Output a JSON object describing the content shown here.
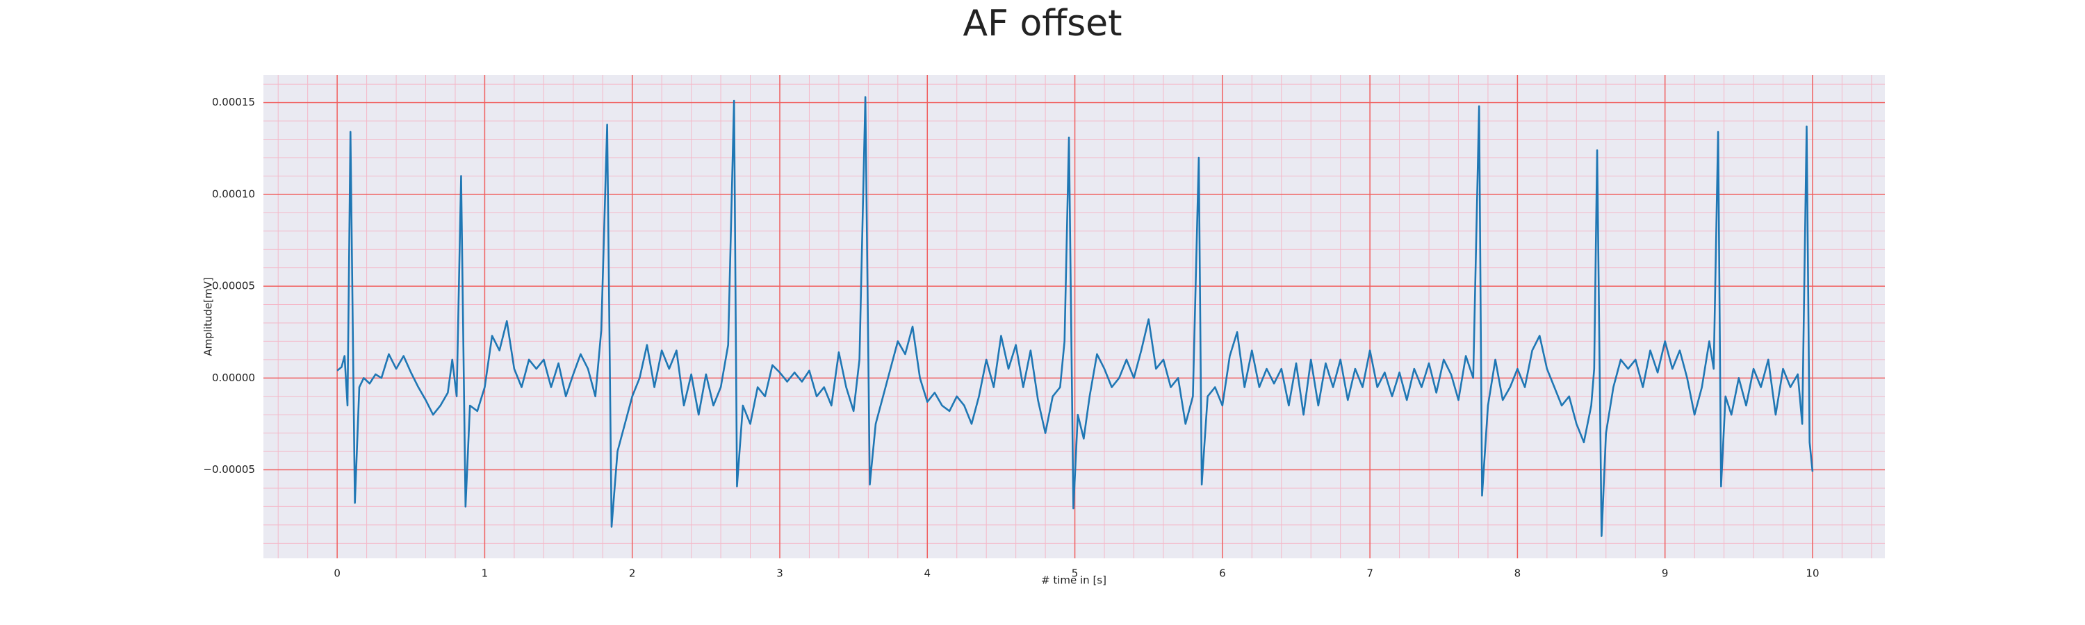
{
  "chart_data": {
    "type": "line",
    "title": "AF offset",
    "xlabel": "# time in [s]",
    "ylabel": "Amplitude[mV]",
    "color": "#1f77b4",
    "grid": true,
    "minor_grid": true,
    "xlim": [
      -0.5,
      10.49
    ],
    "ylim": [
      -9.82e-05,
      0.000165
    ],
    "xticks": [
      0,
      1,
      2,
      3,
      4,
      5,
      6,
      7,
      8,
      9,
      10
    ],
    "yticks": [
      {
        "value": -5e-05,
        "label": "−0.00005"
      },
      {
        "value": 0,
        "label": "0.00000"
      },
      {
        "value": 5e-05,
        "label": "0.00005"
      },
      {
        "value": 0.0001,
        "label": "0.00010"
      },
      {
        "value": 0.00015,
        "label": "0.00015"
      }
    ],
    "x": [
      0,
      0.03,
      0.05,
      0.07,
      0.09,
      0.12,
      0.15,
      0.18,
      0.22,
      0.26,
      0.3,
      0.35,
      0.4,
      0.45,
      0.5,
      0.55,
      0.6,
      0.65,
      0.7,
      0.75,
      0.78,
      0.81,
      0.84,
      0.87,
      0.9,
      0.95,
      1.0,
      1.05,
      1.1,
      1.15,
      1.2,
      1.25,
      1.3,
      1.35,
      1.4,
      1.45,
      1.5,
      1.55,
      1.6,
      1.65,
      1.7,
      1.75,
      1.79,
      1.83,
      1.86,
      1.9,
      1.95,
      2.0,
      2.05,
      2.1,
      2.15,
      2.2,
      2.25,
      2.3,
      2.35,
      2.4,
      2.45,
      2.5,
      2.55,
      2.6,
      2.65,
      2.69,
      2.71,
      2.75,
      2.8,
      2.85,
      2.9,
      2.95,
      3.0,
      3.05,
      3.1,
      3.15,
      3.2,
      3.25,
      3.3,
      3.35,
      3.4,
      3.45,
      3.5,
      3.54,
      3.58,
      3.61,
      3.65,
      3.7,
      3.75,
      3.8,
      3.85,
      3.9,
      3.95,
      4.0,
      4.05,
      4.1,
      4.15,
      4.2,
      4.25,
      4.3,
      4.35,
      4.4,
      4.45,
      4.5,
      4.55,
      4.6,
      4.65,
      4.7,
      4.75,
      4.8,
      4.85,
      4.9,
      4.93,
      4.96,
      4.99,
      5.02,
      5.06,
      5.1,
      5.15,
      5.2,
      5.25,
      5.3,
      5.35,
      5.4,
      5.45,
      5.5,
      5.55,
      5.6,
      5.65,
      5.7,
      5.75,
      5.8,
      5.84,
      5.86,
      5.9,
      5.95,
      6.0,
      6.05,
      6.1,
      6.15,
      6.2,
      6.25,
      6.3,
      6.35,
      6.4,
      6.45,
      6.5,
      6.55,
      6.6,
      6.65,
      6.7,
      6.75,
      6.8,
      6.85,
      6.9,
      6.95,
      7.0,
      7.05,
      7.1,
      7.15,
      7.2,
      7.25,
      7.3,
      7.35,
      7.4,
      7.45,
      7.5,
      7.55,
      7.6,
      7.65,
      7.7,
      7.74,
      7.76,
      7.8,
      7.85,
      7.9,
      7.95,
      8.0,
      8.05,
      8.1,
      8.15,
      8.2,
      8.25,
      8.3,
      8.35,
      8.4,
      8.45,
      8.5,
      8.52,
      8.54,
      8.57,
      8.6,
      8.65,
      8.7,
      8.75,
      8.8,
      8.85,
      8.9,
      8.95,
      9.0,
      9.05,
      9.1,
      9.15,
      9.2,
      9.25,
      9.3,
      9.33,
      9.36,
      9.38,
      9.41,
      9.45,
      9.5,
      9.55,
      9.6,
      9.65,
      9.7,
      9.75,
      9.8,
      9.85,
      9.9,
      9.93,
      9.96,
      9.98,
      10.0
    ],
    "values": [
      4e-06,
      6e-06,
      1.2e-05,
      -1.5e-05,
      0.000134,
      -6.8e-05,
      -5e-06,
      0,
      -3e-06,
      2e-06,
      0,
      1.3e-05,
      5e-06,
      1.2e-05,
      3e-06,
      -5e-06,
      -1.2e-05,
      -2e-05,
      -1.5e-05,
      -8e-06,
      1e-05,
      -1e-05,
      0.00011,
      -7e-05,
      -1.5e-05,
      -1.8e-05,
      -5e-06,
      2.3e-05,
      1.5e-05,
      3.1e-05,
      5e-06,
      -5e-06,
      1e-05,
      5e-06,
      1e-05,
      -5e-06,
      8e-06,
      -1e-05,
      2e-06,
      1.3e-05,
      5e-06,
      -1e-05,
      2.6e-05,
      0.000138,
      -8.1e-05,
      -4e-05,
      -2.5e-05,
      -1e-05,
      0,
      1.8e-05,
      -5e-06,
      1.5e-05,
      5e-06,
      1.5e-05,
      -1.5e-05,
      2e-06,
      -2e-05,
      2e-06,
      -1.5e-05,
      -5e-06,
      1.8e-05,
      0.000151,
      -5.9e-05,
      -1.5e-05,
      -2.5e-05,
      -5e-06,
      -1e-05,
      7e-06,
      3e-06,
      -2e-06,
      3e-06,
      -2e-06,
      4e-06,
      -1e-05,
      -5e-06,
      -1.5e-05,
      1.4e-05,
      -5e-06,
      -1.8e-05,
      1e-05,
      0.000153,
      -5.8e-05,
      -2.5e-05,
      -1e-05,
      5e-06,
      2e-05,
      1.3e-05,
      2.8e-05,
      0,
      -1.3e-05,
      -8e-06,
      -1.5e-05,
      -1.8e-05,
      -1e-05,
      -1.5e-05,
      -2.5e-05,
      -1e-05,
      1e-05,
      -5e-06,
      2.3e-05,
      5e-06,
      1.8e-05,
      -5e-06,
      1.5e-05,
      -1.2e-05,
      -3e-05,
      -1e-05,
      -5e-06,
      2e-05,
      0.000131,
      -7.1e-05,
      -2e-05,
      -3.3e-05,
      -1e-05,
      1.3e-05,
      5e-06,
      -5e-06,
      0,
      1e-05,
      0,
      1.5e-05,
      3.2e-05,
      5e-06,
      1e-05,
      -5e-06,
      0,
      -2.5e-05,
      -1e-05,
      0.00012,
      -5.8e-05,
      -1e-05,
      -5e-06,
      -1.5e-05,
      1.2e-05,
      2.5e-05,
      -5e-06,
      1.5e-05,
      -5e-06,
      5e-06,
      -3e-06,
      5e-06,
      -1.5e-05,
      8e-06,
      -2e-05,
      1e-05,
      -1.5e-05,
      8e-06,
      -5e-06,
      1e-05,
      -1.2e-05,
      5e-06,
      -5e-06,
      1.5e-05,
      -5e-06,
      3e-06,
      -1e-05,
      3e-06,
      -1.2e-05,
      5e-06,
      -5e-06,
      8e-06,
      -8e-06,
      1e-05,
      2e-06,
      -1.2e-05,
      1.2e-05,
      0,
      0.000148,
      -6.4e-05,
      -1.5e-05,
      1e-05,
      -1.2e-05,
      -5e-06,
      5e-06,
      -5e-06,
      1.5e-05,
      2.3e-05,
      5e-06,
      -5e-06,
      -1.5e-05,
      -1e-05,
      -2.5e-05,
      -3.5e-05,
      -1.5e-05,
      5e-06,
      0.000124,
      -8.6e-05,
      -3e-05,
      -5e-06,
      1e-05,
      5e-06,
      1e-05,
      -5e-06,
      1.5e-05,
      3e-06,
      2e-05,
      5e-06,
      1.5e-05,
      0,
      -2e-05,
      -5e-06,
      2e-05,
      5e-06,
      0.000134,
      -5.9e-05,
      -1e-05,
      -2e-05,
      0,
      -1.5e-05,
      5e-06,
      -5e-06,
      1e-05,
      -2e-05,
      5e-06,
      -5e-06,
      2e-06,
      -2.5e-05,
      0.000137,
      -3.5e-05,
      -5.1e-05
    ]
  }
}
